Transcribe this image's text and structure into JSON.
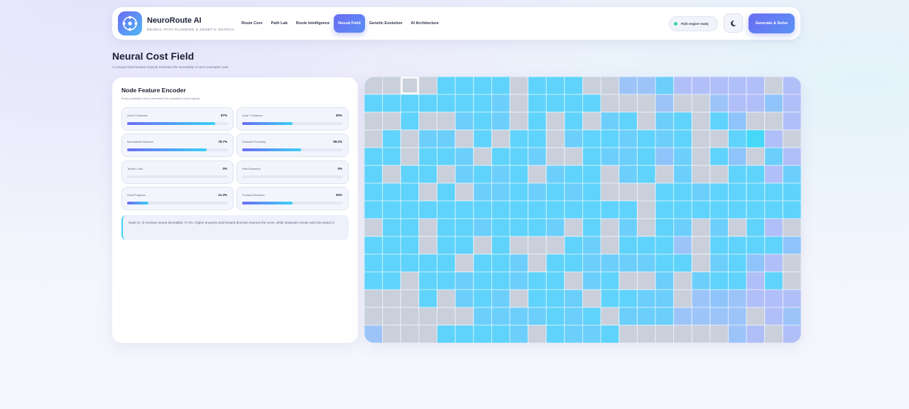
{
  "header": {
    "brand_title": "NeuroRoute AI",
    "brand_subtitle": "NEURAL PATH PLANNING & GENETIC SEARCH",
    "nav": [
      {
        "label": "Route Core",
        "active": false
      },
      {
        "label": "Path Lab",
        "active": false
      },
      {
        "label": "Route Intelligence",
        "active": false
      },
      {
        "label": "Neural Field",
        "active": true
      },
      {
        "label": "Genetic Evolution",
        "active": false
      },
      {
        "label": "AI Architecture",
        "active": false
      }
    ],
    "status_text": "Path engine ready",
    "theme_icon": "moon-icon",
    "generate_label": "Generate & Solve"
  },
  "page": {
    "title": "Neural Cost Field",
    "subtitle": "A compact feed-forward network estimates the desirability of each reachable node."
  },
  "encoder": {
    "title": "Node Feature Encoder",
    "subtitle": "Every candidate cell is converted into normalized route signals.",
    "features": [
      {
        "label": "Goal X Distance",
        "value": "87%",
        "level": 0.87
      },
      {
        "label": "Goal Y Distance",
        "value": "50%",
        "level": 0.5
      },
      {
        "label": "Normalized Distance",
        "value": "78.7%",
        "level": 0.787
      },
      {
        "label": "Obstacle Proximity",
        "value": "58.2%",
        "level": 0.582
      },
      {
        "label": "Terrain Load",
        "value": "0%",
        "level": 0
      },
      {
        "label": "Risk Exposure",
        "value": "0%",
        "level": 0
      },
      {
        "label": "Goal Progress",
        "value": "21.3%",
        "level": 0.213
      },
      {
        "label": "Forward Direction",
        "value": "50%",
        "level": 0.5
      }
    ],
    "note": "Node (2, 0) receives neural desirability 77.3%. Higher progress and forward direction improve the score, while obstacles, terrain and risk reduce it."
  },
  "field": {
    "cols": 24,
    "rows": 15,
    "selected": [
      2,
      0
    ],
    "colors": {
      "obstacle": "#c9d0dc",
      "low": "#aebff8",
      "mid": "#84c9fb",
      "high": "#57d6fb",
      "top": "#44daf9"
    },
    "rows_data": [
      "ooooccccocccooffabbbbbob",
      "cccccccaoccccooofoofbbdb",
      "oocooacaococoacoacocdoob",
      "ocoaaococcoaccacacoocgbo",
      "ccoccaoccaoocaacdaocdoab",
      "coccoacacoaccoacoaooccba",
      "cccocoaacacacoooccaccccc",
      "cccccccccccccccocccccccc",
      "occoccacccaocoaocaoaocbo",
      "cccoccocooocaocccfoccccd",
      "cccccoccaoccaaaaccoacdbo",
      "ccoccaccaccoacooaoaccbco",
      "ooocoacaoccaoccaaofdfbbb",
      "ooooooaaaacacoaaaffffobf",
      "foooccccaocaacoooooofbob"
    ]
  }
}
